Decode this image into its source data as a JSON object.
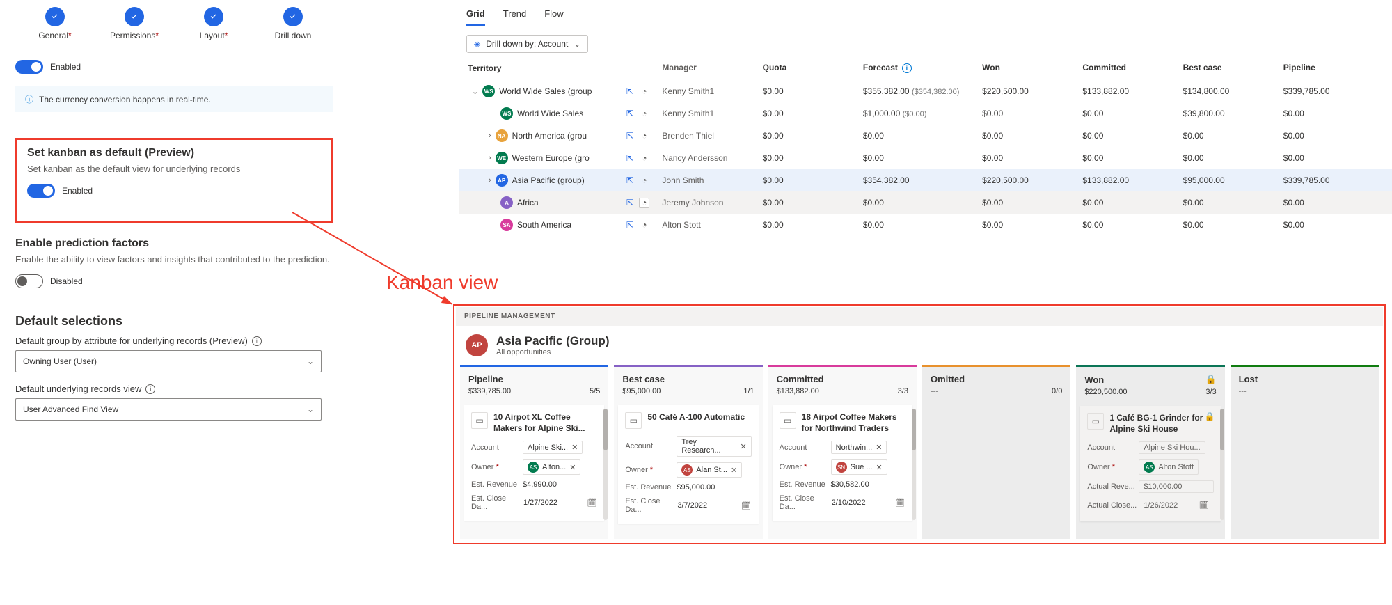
{
  "stepper": {
    "steps": [
      {
        "label": "General",
        "required": true
      },
      {
        "label": "Permissions",
        "required": true
      },
      {
        "label": "Layout",
        "required": true
      },
      {
        "label": "Drill down",
        "required": false
      }
    ]
  },
  "settings": {
    "toggle1_label": "Enabled",
    "info_text": "The currency conversion happens in real-time.",
    "kanban_title": "Set kanban as default (Preview)",
    "kanban_sub": "Set kanban as the default view for underlying records",
    "kanban_toggle_label": "Enabled",
    "pred_title": "Enable prediction factors",
    "pred_sub": "Enable the ability to view factors and insights that contributed to the prediction.",
    "pred_toggle_label": "Disabled",
    "defsel_title": "Default selections",
    "group_by_label": "Default group by attribute for underlying records (Preview)",
    "group_by_value": "Owning User (User)",
    "view_label": "Default underlying records view",
    "view_value": "User Advanced Find View"
  },
  "annotation": {
    "label": "Kanban view"
  },
  "grid": {
    "tabs": [
      "Grid",
      "Trend",
      "Flow"
    ],
    "drill_label": "Drill down by: Account",
    "headers": {
      "territory": "Territory",
      "manager": "Manager",
      "quota": "Quota",
      "forecast": "Forecast",
      "won": "Won",
      "committed": "Committed",
      "bestcase": "Best case",
      "pipeline": "Pipeline"
    },
    "rows": [
      {
        "indent": 0,
        "expand": "open",
        "av": "WS",
        "avcolor": "#027b4f",
        "name": "World Wide Sales (group",
        "manager": "Kenny Smith1",
        "quota": "$0.00",
        "forecast": "$355,382.00",
        "fcsub": "($354,382.00)",
        "won": "$220,500.00",
        "committed": "$133,882.00",
        "bestcase": "$134,800.00",
        "pipeline": "$339,785.00"
      },
      {
        "indent": 1,
        "expand": "",
        "av": "WS",
        "avcolor": "#027b4f",
        "name": "World Wide Sales",
        "manager": "Kenny Smith1",
        "quota": "$0.00",
        "forecast": "$1,000.00",
        "fcsub": "($0.00)",
        "won": "$0.00",
        "committed": "$0.00",
        "bestcase": "$39,800.00",
        "pipeline": "$0.00"
      },
      {
        "indent": 1,
        "expand": "closed",
        "av": "NA",
        "avcolor": "#e8a33d",
        "name": "North America (grou",
        "manager": "Brenden Thiel",
        "quota": "$0.00",
        "forecast": "$0.00",
        "fcsub": "",
        "won": "$0.00",
        "committed": "$0.00",
        "bestcase": "$0.00",
        "pipeline": "$0.00"
      },
      {
        "indent": 1,
        "expand": "closed",
        "av": "WE",
        "avcolor": "#027b4f",
        "name": "Western Europe (gro",
        "manager": "Nancy Andersson",
        "quota": "$0.00",
        "forecast": "$0.00",
        "fcsub": "",
        "won": "$0.00",
        "committed": "$0.00",
        "bestcase": "$0.00",
        "pipeline": "$0.00"
      },
      {
        "indent": 1,
        "expand": "closed",
        "av": "AP",
        "avcolor": "#2266e3",
        "name": "Asia Pacific (group)",
        "manager": "John Smith",
        "quota": "$0.00",
        "forecast": "$354,382.00",
        "fcsub": "",
        "won": "$220,500.00",
        "committed": "$133,882.00",
        "bestcase": "$95,000.00",
        "pipeline": "$339,785.00",
        "sel": true
      },
      {
        "indent": 1,
        "expand": "",
        "av": "A",
        "avcolor": "#8661c5",
        "name": "Africa",
        "manager": "Jeremy Johnson",
        "quota": "$0.00",
        "forecast": "$0.00",
        "fcsub": "",
        "won": "$0.00",
        "committed": "$0.00",
        "bestcase": "$0.00",
        "pipeline": "$0.00",
        "hov": true,
        "boxed_icon": true
      },
      {
        "indent": 1,
        "expand": "",
        "av": "SA",
        "avcolor": "#d83b9c",
        "name": "South America",
        "manager": "Alton Stott",
        "quota": "$0.00",
        "forecast": "$0.00",
        "fcsub": "",
        "won": "$0.00",
        "committed": "$0.00",
        "bestcase": "$0.00",
        "pipeline": "$0.00"
      }
    ]
  },
  "kanban": {
    "header": "PIPELINE MANAGEMENT",
    "group_av": "AP",
    "group_title": "Asia Pacific (Group)",
    "group_sub": "All opportunities",
    "columns": [
      {
        "title": "Pipeline",
        "color": "#2266e3",
        "sum": "$339,785.00",
        "count": "5/5",
        "dim": false,
        "card": {
          "title": "10 Airpot XL Coffee Makers for Alpine Ski...",
          "account": "Alpine Ski...",
          "owner": "Alton...",
          "owner_av": "AS",
          "owner_color": "#027b4f",
          "revenue": "$4,990.00",
          "close": "1/27/2022",
          "locked": false
        },
        "scroll": true
      },
      {
        "title": "Best case",
        "color": "#8661c5",
        "sum": "$95,000.00",
        "count": "1/1",
        "dim": false,
        "card": {
          "title": "50 Café A-100 Automatic",
          "account": "Trey Research...",
          "owner": "Alan St...",
          "owner_av": "AS",
          "owner_color": "#c1443f",
          "revenue": "$95,000.00",
          "close": "3/7/2022",
          "locked": false
        }
      },
      {
        "title": "Committed",
        "color": "#d83b9c",
        "sum": "$133,882.00",
        "count": "3/3",
        "dim": false,
        "card": {
          "title": "18 Airpot Coffee Makers for Northwind Traders",
          "account": "Northwin...",
          "owner": "Sue ...",
          "owner_av": "SN",
          "owner_color": "#c1443f",
          "revenue": "$30,582.00",
          "close": "2/10/2022",
          "locked": false
        },
        "scroll": true
      },
      {
        "title": "Omitted",
        "color": "#e8912d",
        "sum": "---",
        "count": "0/0",
        "dim": true,
        "card": null
      },
      {
        "title": "Won",
        "color": "#0b7556",
        "sum": "$220,500.00",
        "count": "3/3",
        "dim": true,
        "lock": true,
        "card": {
          "title": "1 Café BG-1 Grinder for Alpine Ski House",
          "account": "Alpine Ski Hou...",
          "owner": "Alton Stott",
          "owner_av": "AS",
          "owner_color": "#027b4f",
          "revenue_label": "Actual Reve...",
          "revenue": "$10,000.00",
          "close_label": "Actual Close...",
          "close": "1/26/2022",
          "locked": true
        },
        "scroll": true
      },
      {
        "title": "Lost",
        "color": "#107c10",
        "sum": "---",
        "count": "",
        "dim": true,
        "card": null
      }
    ],
    "field_labels": {
      "account": "Account",
      "owner": "Owner",
      "revenue": "Est. Revenue",
      "close": "Est. Close Da..."
    }
  },
  "colors": {
    "primary": "#2266e3",
    "red": "#ef3b2c"
  }
}
